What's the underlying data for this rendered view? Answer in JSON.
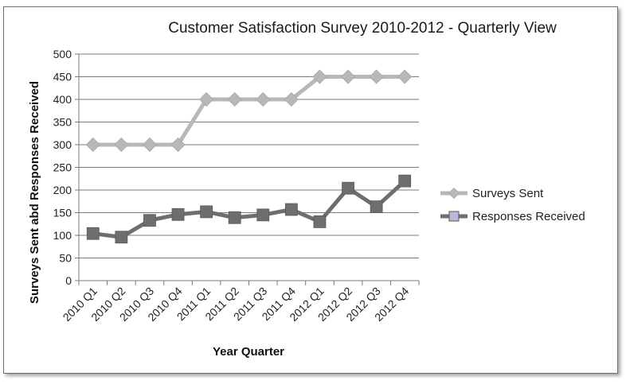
{
  "chart_data": {
    "type": "line",
    "title": "Customer Satisfaction Survey 2010-2012 - Quarterly View",
    "xlabel": "Year Quarter",
    "ylabel": "Surveys Sent abd Responses Received",
    "categories": [
      "2010 Q1",
      "2010 Q2",
      "2010 Q3",
      "2010 Q4",
      "2011 Q1",
      "2011 Q2",
      "2011 Q3",
      "2011 Q4",
      "2012 Q1",
      "2012 Q2",
      "2012 Q3",
      "2012 Q4"
    ],
    "ylim": [
      0,
      500
    ],
    "yticks": [
      0,
      50,
      100,
      150,
      200,
      250,
      300,
      350,
      400,
      450,
      500
    ],
    "grid": true,
    "legend_position": "right",
    "series": [
      {
        "name": "Surveys Sent",
        "color": "#b8b8b8",
        "marker": "diamond",
        "values": [
          300,
          300,
          300,
          300,
          400,
          400,
          400,
          400,
          450,
          450,
          450,
          450
        ]
      },
      {
        "name": "Responses Received",
        "color": "#6e6e6e",
        "marker": "square",
        "values": [
          104,
          96,
          133,
          146,
          152,
          139,
          145,
          157,
          130,
          204,
          163,
          220
        ]
      }
    ]
  }
}
